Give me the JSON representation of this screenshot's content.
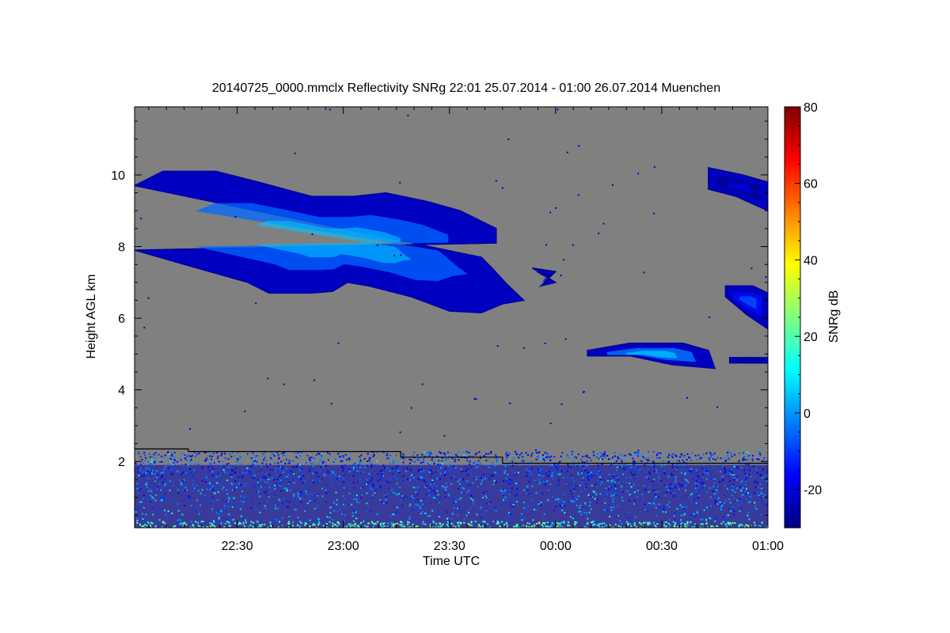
{
  "chart_data": {
    "type": "heatmap",
    "title": "20140725_0000.mmclx Reflectivity SNRg   22:01 25.07.2014 - 01:00 26.07.2014 Muenchen",
    "xlabel": "Time UTC",
    "ylabel": "Height AGL km",
    "colorbar_label": "SNRg dB",
    "x_range_hours": [
      22.0167,
      25.0
    ],
    "y_range_km": [
      0.15,
      11.9
    ],
    "color_range_db": [
      -30,
      80
    ],
    "x_ticks": [
      {
        "label": "22:30",
        "value": 22.5
      },
      {
        "label": "23:00",
        "value": 23.0
      },
      {
        "label": "23:30",
        "value": 23.5
      },
      {
        "label": "00:00",
        "value": 24.0
      },
      {
        "label": "00:30",
        "value": 24.5
      },
      {
        "label": "01:00",
        "value": 25.0
      }
    ],
    "y_ticks": [
      {
        "label": "2",
        "value": 2
      },
      {
        "label": "4",
        "value": 4
      },
      {
        "label": "6",
        "value": 6
      },
      {
        "label": "8",
        "value": 8
      },
      {
        "label": "10",
        "value": 10
      }
    ],
    "colorbar_ticks": [
      {
        "label": "-20",
        "value": -20
      },
      {
        "label": "0",
        "value": 0
      },
      {
        "label": "20",
        "value": 20
      },
      {
        "label": "40",
        "value": 40
      },
      {
        "label": "60",
        "value": 60
      },
      {
        "label": "80",
        "value": 80
      }
    ],
    "background_color": "#808080",
    "colormap": "jet",
    "boundary_line": [
      [
        22.0167,
        2.35
      ],
      [
        22.27,
        2.35
      ],
      [
        22.27,
        2.28
      ],
      [
        23.27,
        2.28
      ],
      [
        23.27,
        2.12
      ],
      [
        23.75,
        2.12
      ],
      [
        23.75,
        1.95
      ],
      [
        25.0,
        1.95
      ]
    ],
    "echoes": [
      {
        "name": "upper cirrus layer",
        "top": [
          [
            22.0167,
            9.7
          ],
          [
            22.15,
            10.1
          ],
          [
            22.4,
            10.1
          ],
          [
            22.6,
            9.8
          ],
          [
            22.85,
            9.4
          ],
          [
            23.05,
            9.4
          ],
          [
            23.2,
            9.5
          ],
          [
            23.4,
            9.25
          ],
          [
            23.55,
            9.0
          ],
          [
            23.72,
            8.5
          ],
          [
            23.72,
            8.1
          ]
        ],
        "bottom": [
          [
            22.0167,
            7.9
          ],
          [
            22.25,
            7.5
          ],
          [
            22.55,
            7.0
          ],
          [
            22.65,
            6.7
          ],
          [
            22.85,
            6.7
          ],
          [
            22.95,
            6.75
          ],
          [
            23.02,
            7.0
          ],
          [
            23.12,
            6.9
          ],
          [
            23.32,
            6.6
          ],
          [
            23.5,
            6.2
          ],
          [
            23.65,
            6.15
          ],
          [
            23.75,
            6.4
          ],
          [
            23.85,
            6.5
          ],
          [
            23.77,
            6.95
          ],
          [
            23.7,
            7.4
          ],
          [
            23.65,
            7.7
          ]
        ],
        "peak_db": 5
      },
      {
        "name": "fragment near 23:55",
        "top": [
          [
            23.89,
            7.4
          ],
          [
            24.0,
            7.3
          ]
        ],
        "bottom": [
          [
            23.93,
            6.9
          ],
          [
            24.0,
            7.0
          ]
        ],
        "peak_db": -20
      },
      {
        "name": "mid-level layer",
        "top": [
          [
            24.15,
            5.1
          ],
          [
            24.35,
            5.3
          ],
          [
            24.6,
            5.3
          ],
          [
            24.72,
            5.1
          ]
        ],
        "bottom": [
          [
            24.75,
            4.6
          ],
          [
            24.55,
            4.7
          ],
          [
            24.35,
            4.95
          ],
          [
            24.15,
            4.95
          ]
        ],
        "peak_db": 8
      },
      {
        "name": "upper right cloud",
        "top": [
          [
            24.72,
            10.2
          ],
          [
            24.88,
            10.0
          ],
          [
            25.0,
            9.8
          ]
        ],
        "bottom": [
          [
            25.0,
            9.0
          ],
          [
            24.85,
            9.4
          ],
          [
            24.72,
            9.6
          ]
        ],
        "peak_db": -18
      },
      {
        "name": "right cloud near 6.5 km",
        "top": [
          [
            24.8,
            6.9
          ],
          [
            24.93,
            6.9
          ],
          [
            25.0,
            6.7
          ]
        ],
        "bottom": [
          [
            25.0,
            5.7
          ],
          [
            24.9,
            6.1
          ],
          [
            24.8,
            6.6
          ]
        ],
        "peak_db": -5
      },
      {
        "name": "fragment near 00:45 low",
        "top": [
          [
            24.82,
            4.9
          ],
          [
            25.0,
            4.9
          ]
        ],
        "bottom": [
          [
            25.0,
            4.75
          ],
          [
            24.82,
            4.75
          ]
        ],
        "peak_db": -22
      }
    ],
    "ground_clutter": {
      "top_km": 2.3,
      "peak_db": 30
    }
  }
}
